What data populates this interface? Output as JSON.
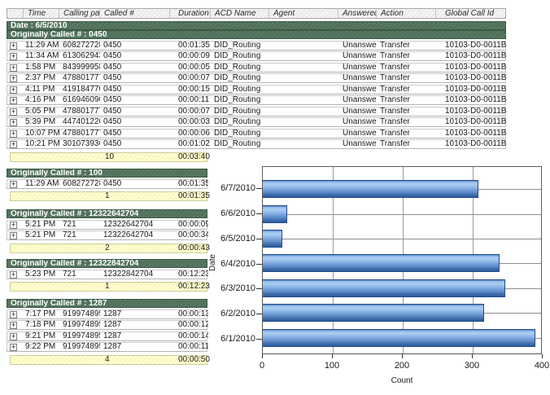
{
  "icons": {
    "expand": "+"
  },
  "colors": {
    "group_bar_green": "#50705a",
    "summary_yellow": "#ffffcc",
    "header_gray": "#ececec",
    "bar_blue_light": "#aacdf2",
    "bar_blue_dark": "#2d5b9e",
    "bar_border": "#1f4c8c"
  },
  "table": {
    "columns": [
      "",
      "Time",
      "Calling party #",
      "Called #",
      "Duration",
      "ACD Name",
      "Agent",
      "Answered",
      "Action",
      "Global Call Id"
    ],
    "date_header": "Date : 6/5/2010",
    "groups": [
      {
        "header": "Originally Called # : 0450",
        "wide": true,
        "rows": [
          [
            "11:29 AM",
            "6082727287",
            "0450",
            "00:01:35",
            "DID_Routing",
            "",
            "Unanswered",
            "Transfer",
            "10103-D0-0011B-768"
          ],
          [
            "11:34 AM",
            "6130629432",
            "0450",
            "00:00:09",
            "DID_Routing",
            "",
            "Unanswered",
            "Transfer",
            "10103-D0-0011B-76F"
          ],
          [
            "1:58 PM",
            "8439999581",
            "0450",
            "00:00:05",
            "DID_Routing",
            "",
            "Unanswered",
            "Transfer",
            "10103-D0-0011B-770"
          ],
          [
            "2:37 PM",
            "4788017770",
            "0450",
            "00:00:07",
            "DID_Routing",
            "",
            "Unanswered",
            "Transfer",
            "10103-D0-0011B-771"
          ],
          [
            "4:11 PM",
            "4191847701",
            "0450",
            "00:00:15",
            "DID_Routing",
            "",
            "Unanswered",
            "Transfer",
            "10103-D0-0011B-772"
          ],
          [
            "4:16 PM",
            "6169460905",
            "0450",
            "00:00:11",
            "DID_Routing",
            "",
            "Unanswered",
            "Transfer",
            "10103-D0-0011B-773"
          ],
          [
            "5:05 PM",
            "4788017770",
            "0450",
            "00:00:07",
            "DID_Routing",
            "",
            "Unanswered",
            "Transfer",
            "10103-D0-0011B-774"
          ],
          [
            "5:39 PM",
            "4474012204",
            "0450",
            "00:00:03",
            "DID_Routing",
            "",
            "Unanswered",
            "Transfer",
            "10103-D0-0011B-778"
          ],
          [
            "10:07 PM",
            "4788017770",
            "0450",
            "00:00:06",
            "DID_Routing",
            "",
            "Unanswered",
            "Transfer",
            "10103-D0-0011B-77E"
          ],
          [
            "10:21 PM",
            "3010739363",
            "0450",
            "00:01:02",
            "DID_Routing",
            "",
            "Unanswered",
            "Transfer",
            "10103-D0-0011B-77F"
          ]
        ],
        "summary": {
          "count": "10",
          "total_duration": "00:03:40"
        }
      },
      {
        "header": "Originally Called # : 100",
        "wide": false,
        "rows": [
          [
            "11:29 AM",
            "6082727287",
            "0450",
            "00:01:35"
          ]
        ],
        "summary": {
          "count": "1",
          "total_duration": "00:01:35"
        }
      },
      {
        "header": "Originally Called # : 12322642704",
        "wide": false,
        "rows": [
          [
            "5:21 PM",
            "721",
            "12322642704",
            "00:00:09"
          ],
          [
            "5:21 PM",
            "721",
            "12322642704",
            "00:00:34"
          ]
        ],
        "summary": {
          "count": "2",
          "total_duration": "00:00:43"
        }
      },
      {
        "header": "Originally Called # : 12322842704",
        "wide": false,
        "rows": [
          [
            "5:23 PM",
            "721",
            "12322842704",
            "00:12:23"
          ]
        ],
        "summary": {
          "count": "1",
          "total_duration": "00:12:23"
        }
      },
      {
        "header": "Originally Called # : 1287",
        "wide": false,
        "rows": [
          [
            "7:17 PM",
            "9199748952",
            "1287",
            "00:00:13"
          ],
          [
            "7:18 PM",
            "9199748952",
            "1287",
            "00:00:12"
          ],
          [
            "9:21 PM",
            "9199748952",
            "1287",
            "00:00:14"
          ],
          [
            "9:22 PM",
            "9199748952",
            "1287",
            "00:00:11"
          ]
        ],
        "summary": {
          "count": "4",
          "total_duration": "00:00:50"
        }
      }
    ]
  },
  "chart_data": {
    "type": "bar",
    "orientation": "horizontal",
    "title": "",
    "xlabel": "Count",
    "ylabel": "Date",
    "categories": [
      "6/7/2010",
      "6/6/2010",
      "6/5/2010",
      "6/4/2010",
      "6/3/2010",
      "6/2/2010",
      "6/1/2010"
    ],
    "values": [
      310,
      35,
      28,
      340,
      348,
      318,
      392
    ],
    "xlim": [
      0,
      400
    ],
    "xticks": [
      0,
      100,
      200,
      300,
      400
    ],
    "grid": true,
    "legend": false
  }
}
